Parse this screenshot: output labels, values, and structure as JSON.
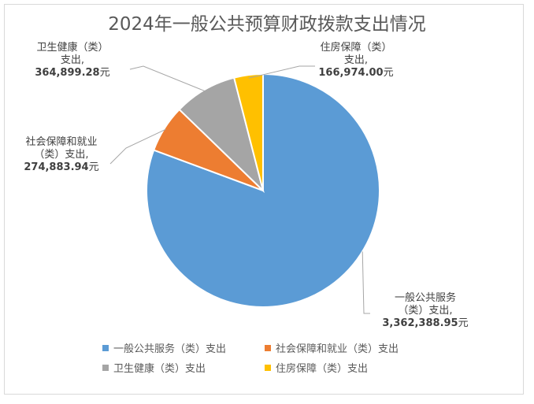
{
  "chart_data": {
    "type": "pie",
    "title": "2024年一般公共预算财政拨款支出情况",
    "legend_position": "bottom",
    "series": [
      {
        "name": "一般公共服务（类）支出",
        "value": 3362388.95,
        "value_label": "3,362,388.95",
        "unit": "元",
        "label_lines": [
          "一般公共服务",
          "（类）支出,"
        ],
        "color": "#5B9BD5"
      },
      {
        "name": "社会保障和就业（类）支出",
        "value": 274883.94,
        "value_label": "274,883.94",
        "unit": "元",
        "label_lines": [
          "社会保障和就业",
          "（类）支出,"
        ],
        "color": "#ED7D31"
      },
      {
        "name": "卫生健康（类）支出",
        "value": 364899.28,
        "value_label": "364,899.28",
        "unit": "元",
        "label_lines": [
          "卫生健康（类）",
          "支出,"
        ],
        "color": "#A5A5A5"
      },
      {
        "name": "住房保障（类）支出",
        "value": 166974.0,
        "value_label": "166,974.00",
        "unit": "元",
        "label_lines": [
          "住房保障（类）",
          "支出,"
        ],
        "color": "#FFC000"
      }
    ]
  }
}
